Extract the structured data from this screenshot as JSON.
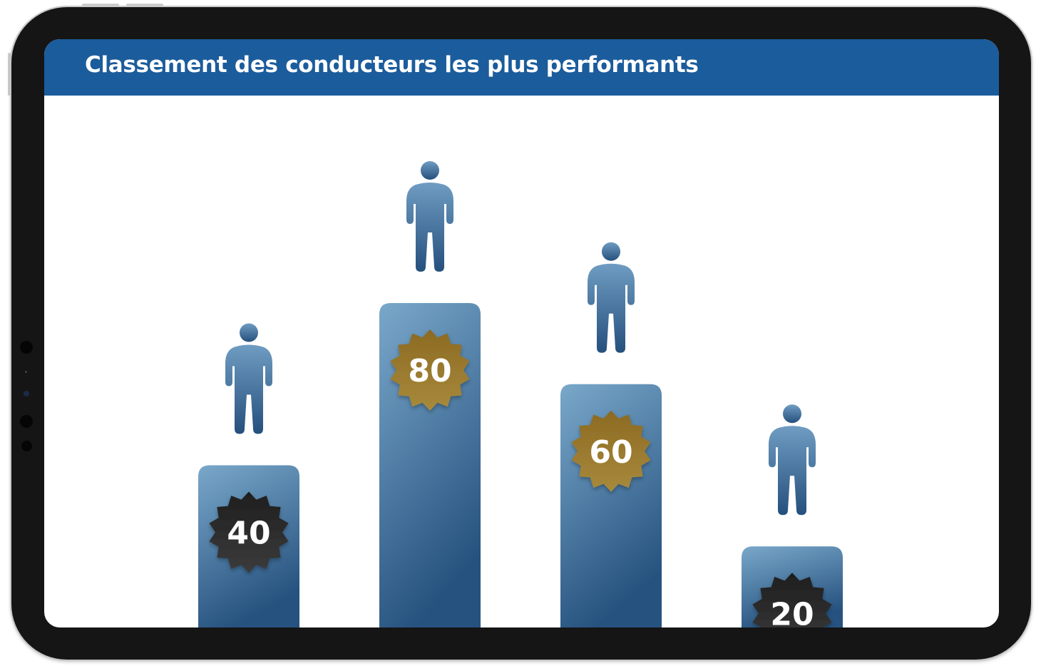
{
  "header": {
    "title": "Classement des conducteurs les plus performants"
  },
  "colors": {
    "header": "#1b5c9c",
    "bar_top": "#7aa8ca",
    "bar_bottom": "#26527f",
    "person_top": "#6f9cc2",
    "person_bottom": "#25507d",
    "badge_gold_top": "#8c6a22",
    "badge_gold_bottom": "#a88a3c",
    "badge_dark_top": "#1e1e1e",
    "badge_dark_bottom": "#3c3c3c"
  },
  "chart_data": {
    "type": "bar",
    "title": "Classement des conducteurs les plus performants",
    "xlabel": "",
    "ylabel": "",
    "ylim": [
      0,
      80
    ],
    "grid": false,
    "legend": "none",
    "values": [
      40,
      80,
      60,
      20
    ],
    "data_labels": [
      "40",
      "80",
      "60",
      "20"
    ],
    "badge_style": [
      "dark",
      "gold",
      "gold",
      "dark"
    ],
    "icons": [
      "person-icon",
      "person-icon",
      "person-icon",
      "person-icon"
    ]
  }
}
